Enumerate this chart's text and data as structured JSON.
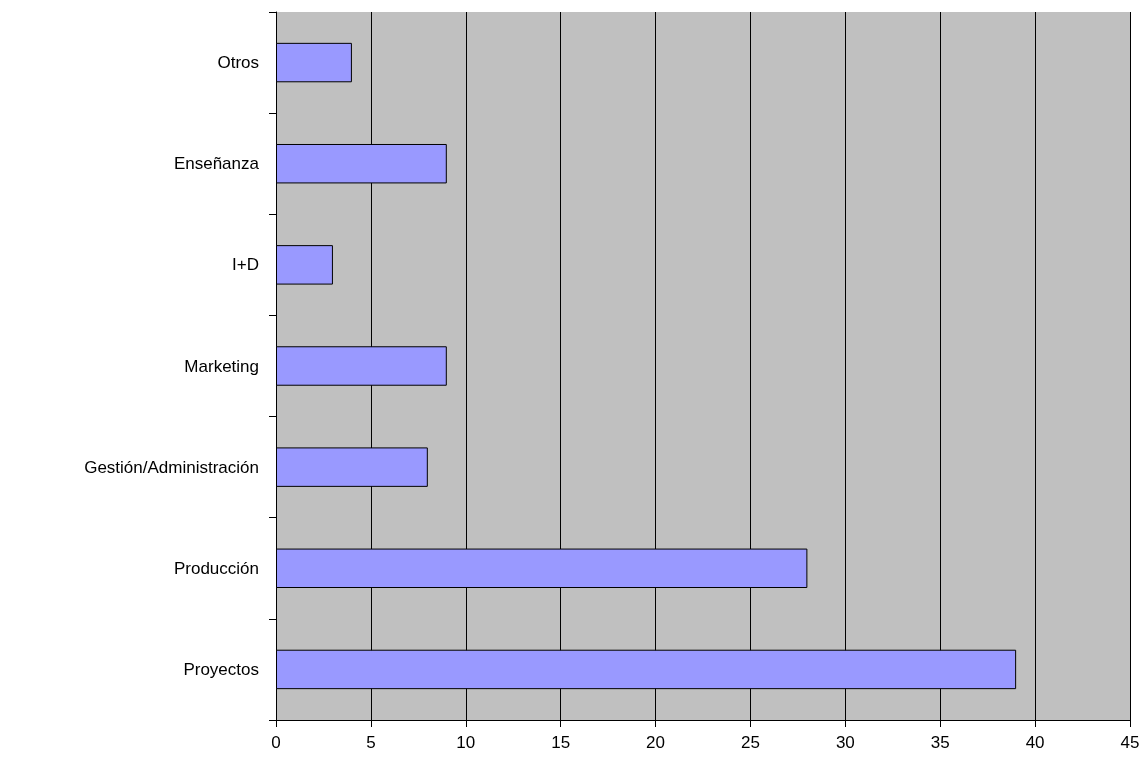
{
  "chart_data": {
    "type": "bar",
    "orientation": "horizontal",
    "categories": [
      "Otros",
      "Enseñanza",
      "I+D",
      "Marketing",
      "Gestión/Administración",
      "Producción",
      "Proyectos"
    ],
    "values": [
      4,
      9,
      3,
      9,
      8,
      28,
      39
    ],
    "color": "#9999ff",
    "xlim": [
      0,
      45
    ],
    "xticks": [
      0,
      5,
      10,
      15,
      20,
      25,
      30,
      35,
      40,
      45
    ],
    "grid": "x"
  }
}
